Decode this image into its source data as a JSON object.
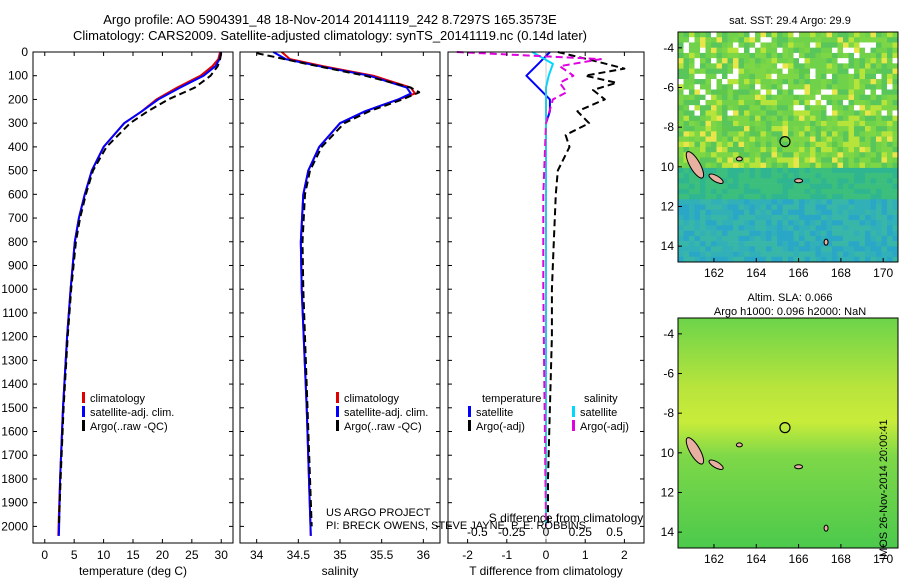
{
  "title_line1": "Argo profile: AO 5904391_48 18-Nov-2014 20141119_242 8.7297S 165.3573E",
  "title_line2": "Climatology: CARS2009. Satellite-adjusted climatology: synTS_20141119.nc (0.14d later)",
  "credit": "US ARGO PROJECT\nPI: BRECK OWENS, STEVE JAYNE, P. E. ROBBINS",
  "vertical_stamp": "IMOS 26-Nov-2014 20:00:41",
  "colors": {
    "climatology": "#e00000",
    "satellite": "#0000ff",
    "argo": "#000000",
    "sat_salinity": "#00d8ff",
    "argo_salinity": "#e000e0"
  },
  "legend_left": [
    "climatology",
    "satellite-adj. clim.",
    "Argo(..raw -QC)"
  ],
  "legend_diff": {
    "temp_header": "temperature",
    "sal_header": "salinity",
    "satellite": "satellite",
    "argo": "Argo(-adj)"
  },
  "map_top": {
    "label": "sat. SST: 29.4  Argo: 29.9",
    "x_ticks": [
      "162",
      "164",
      "166",
      "168",
      "170"
    ],
    "y_ticks": [
      "-4",
      "-6",
      "-8",
      "-10",
      "-12",
      "-14"
    ]
  },
  "map_bottom": {
    "label1": "Altim. SLA: 0.066",
    "label2": "Argo h1000: 0.096 h2000: NaN",
    "x_ticks": [
      "162",
      "164",
      "166",
      "168",
      "170"
    ],
    "y_ticks": [
      "-4",
      "-6",
      "-8",
      "-10",
      "-12",
      "-14"
    ]
  },
  "chart_data": [
    {
      "type": "line",
      "xlabel": "temperature (deg C)",
      "ylabel": "",
      "xlim": [
        -2,
        32
      ],
      "ylim": [
        2070,
        0
      ],
      "x_ticks": [
        0,
        5,
        10,
        15,
        20,
        25,
        30
      ],
      "y_ticks": [
        0,
        100,
        200,
        300,
        400,
        500,
        600,
        700,
        800,
        900,
        1000,
        1100,
        1200,
        1300,
        1400,
        1500,
        1600,
        1700,
        1800,
        1900,
        2000
      ],
      "series": [
        {
          "name": "climatology",
          "depth": [
            0,
            30,
            60,
            100,
            150,
            200,
            250,
            300,
            400,
            500,
            600,
            700,
            800,
            1000,
            1200,
            1500,
            1800,
            1950,
            2040
          ],
          "values": [
            29.8,
            29.5,
            28.5,
            26.5,
            22.5,
            19,
            16.5,
            13.5,
            10,
            8,
            6.8,
            5.8,
            5.1,
            4.4,
            3.8,
            3.1,
            2.6,
            2.4,
            2.3
          ]
        },
        {
          "name": "satellite-adj. clim.",
          "depth": [
            0,
            30,
            60,
            100,
            150,
            200,
            250,
            300,
            400,
            500,
            600,
            700,
            800,
            1000,
            1200,
            1500,
            1800,
            2040
          ],
          "values": [
            30,
            29.7,
            29,
            27,
            23,
            19.3,
            16.5,
            13.5,
            10,
            8,
            6.8,
            5.8,
            5.1,
            4.4,
            3.8,
            3.1,
            2.6,
            2.4
          ]
        },
        {
          "name": "Argo(..raw -QC)",
          "depth": [
            5,
            30,
            60,
            100,
            150,
            200,
            250,
            300,
            400,
            500,
            600,
            700,
            800,
            1000,
            1200,
            1500,
            1800,
            2000
          ],
          "values": [
            30,
            29.8,
            29.4,
            28.2,
            25.5,
            21,
            17.5,
            14.5,
            10.5,
            8.2,
            7,
            6,
            5.3,
            4.5,
            3.9,
            3.2,
            2.7,
            2.4
          ]
        }
      ]
    },
    {
      "type": "line",
      "xlabel": "salinity",
      "ylabel": "",
      "xlim": [
        33.8,
        36.2
      ],
      "ylim": [
        2070,
        0
      ],
      "x_ticks": [
        34,
        34.5,
        35,
        35.5,
        36
      ],
      "series": [
        {
          "name": "climatology",
          "depth": [
            0,
            30,
            60,
            100,
            150,
            175,
            200,
            250,
            300,
            400,
            500,
            600,
            800,
            1000,
            1500,
            2040
          ],
          "values": [
            34.3,
            34.4,
            34.8,
            35.4,
            35.85,
            35.9,
            35.7,
            35.3,
            35.0,
            34.75,
            34.62,
            34.56,
            34.53,
            34.54,
            34.6,
            34.65
          ]
        },
        {
          "name": "satellite-adj. clim.",
          "depth": [
            0,
            30,
            60,
            100,
            150,
            175,
            200,
            250,
            300,
            400,
            500,
            600,
            800,
            1000,
            1500,
            2040
          ],
          "values": [
            34.2,
            34.35,
            34.75,
            35.35,
            35.8,
            35.85,
            35.7,
            35.3,
            35.0,
            34.75,
            34.62,
            34.56,
            34.53,
            34.54,
            34.6,
            34.65
          ]
        },
        {
          "name": "Argo(..raw -QC)",
          "depth": [
            5,
            20,
            50,
            100,
            150,
            170,
            200,
            250,
            300,
            400,
            500,
            600,
            800,
            1000,
            1500,
            2000
          ],
          "values": [
            34.0,
            34.2,
            34.6,
            35.3,
            35.85,
            35.95,
            35.75,
            35.35,
            35.05,
            34.78,
            34.64,
            34.58,
            34.55,
            34.56,
            34.61,
            34.66
          ]
        }
      ]
    },
    {
      "type": "line",
      "xlabel": "T difference from climatology",
      "xlabel_top": "S difference from climatology",
      "xlim": [
        -2.5,
        2.5
      ],
      "ylim": [
        2070,
        0
      ],
      "x_ticks": [
        -2,
        -1,
        0,
        1,
        2
      ],
      "x_ticks_top": [
        -0.5,
        -0.25,
        0,
        0.25,
        0.5
      ],
      "series": [
        {
          "name": "temperature satellite",
          "depth": [
            0,
            50,
            100,
            150,
            200,
            250,
            300,
            400,
            600,
            1000,
            1500,
            2000
          ],
          "values": [
            0.1,
            -0.2,
            -0.5,
            -0.2,
            0.1,
            0.1,
            0,
            0,
            0,
            0,
            0,
            0
          ]
        },
        {
          "name": "temperature Argo(-adj)",
          "depth": [
            0,
            40,
            70,
            100,
            130,
            160,
            200,
            250,
            300,
            350,
            400,
            500,
            600,
            800,
            1000,
            1200,
            1500,
            1800,
            2000
          ],
          "values": [
            0.3,
            1.3,
            2.0,
            1.0,
            1.8,
            1.2,
            1.5,
            0.8,
            1.1,
            0.5,
            0.6,
            0.3,
            0.25,
            0.2,
            0.15,
            0.15,
            0.1,
            0.05,
            0.05
          ]
        },
        {
          "name": "salinity satellite",
          "depth": [
            0,
            50,
            100,
            150,
            200,
            300,
            600,
            1000,
            1500,
            2000
          ],
          "values": [
            -0.1,
            0.05,
            0.02,
            0,
            0,
            0,
            0,
            0,
            0,
            0
          ]
        },
        {
          "name": "salinity Argo(-adj)",
          "depth": [
            0,
            30,
            60,
            100,
            130,
            170,
            200,
            300,
            600,
            1000,
            1500,
            2000
          ],
          "values": [
            -0.65,
            0.4,
            0.1,
            0.2,
            0.1,
            0.15,
            0.05,
            0,
            -0.02,
            -0.02,
            -0.01,
            0
          ]
        }
      ]
    }
  ]
}
